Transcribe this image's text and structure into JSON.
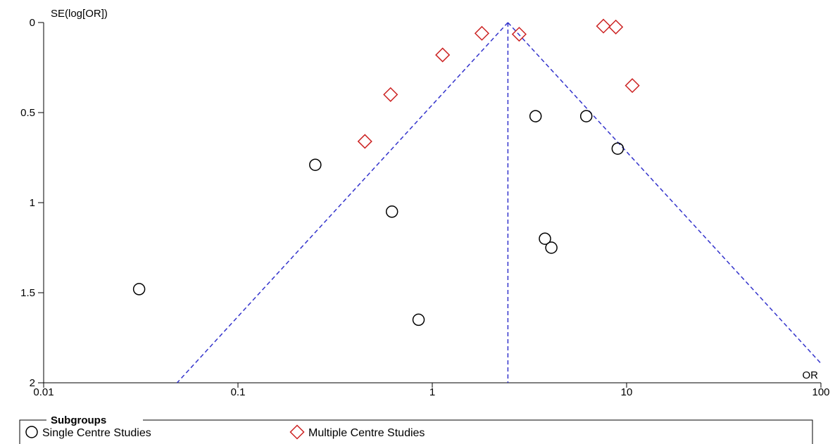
{
  "chart_data": {
    "type": "scatter",
    "subtype": "funnel",
    "xlabel": "OR",
    "ylabel": "SE(log[OR])",
    "x_scale": "log",
    "xlim": [
      0.01,
      100
    ],
    "ylim": [
      0,
      2
    ],
    "y_reversed": true,
    "x_ticks": [
      0.01,
      0.1,
      1,
      10,
      100
    ],
    "x_tick_labels": [
      "0.01",
      "0.1",
      "1",
      "10",
      "100"
    ],
    "y_ticks": [
      0,
      0.5,
      1,
      1.5,
      2
    ],
    "y_tick_labels": [
      "0",
      "0.5",
      "1",
      "1.5",
      "2"
    ],
    "pooled_or": 2.45,
    "funnel_color": "#3333cc",
    "legend": {
      "title": "Subgroups",
      "placement": "bottom"
    },
    "series": [
      {
        "name": "Single Centre Studies",
        "marker": "circle",
        "color": "#000000",
        "points": [
          {
            "x": 0.031,
            "y": 1.48
          },
          {
            "x": 0.25,
            "y": 0.79
          },
          {
            "x": 0.62,
            "y": 1.05
          },
          {
            "x": 0.85,
            "y": 1.65
          },
          {
            "x": 3.4,
            "y": 0.52
          },
          {
            "x": 3.8,
            "y": 1.2
          },
          {
            "x": 4.1,
            "y": 1.25
          },
          {
            "x": 6.2,
            "y": 0.52
          },
          {
            "x": 9.0,
            "y": 0.7
          }
        ]
      },
      {
        "name": "Multiple Centre Studies",
        "marker": "diamond",
        "color": "#cc2222",
        "points": [
          {
            "x": 0.45,
            "y": 0.66
          },
          {
            "x": 0.61,
            "y": 0.4
          },
          {
            "x": 1.13,
            "y": 0.18
          },
          {
            "x": 1.8,
            "y": 0.06
          },
          {
            "x": 2.8,
            "y": 0.065
          },
          {
            "x": 7.6,
            "y": 0.02
          },
          {
            "x": 8.8,
            "y": 0.025
          },
          {
            "x": 10.7,
            "y": 0.35
          }
        ]
      }
    ]
  }
}
